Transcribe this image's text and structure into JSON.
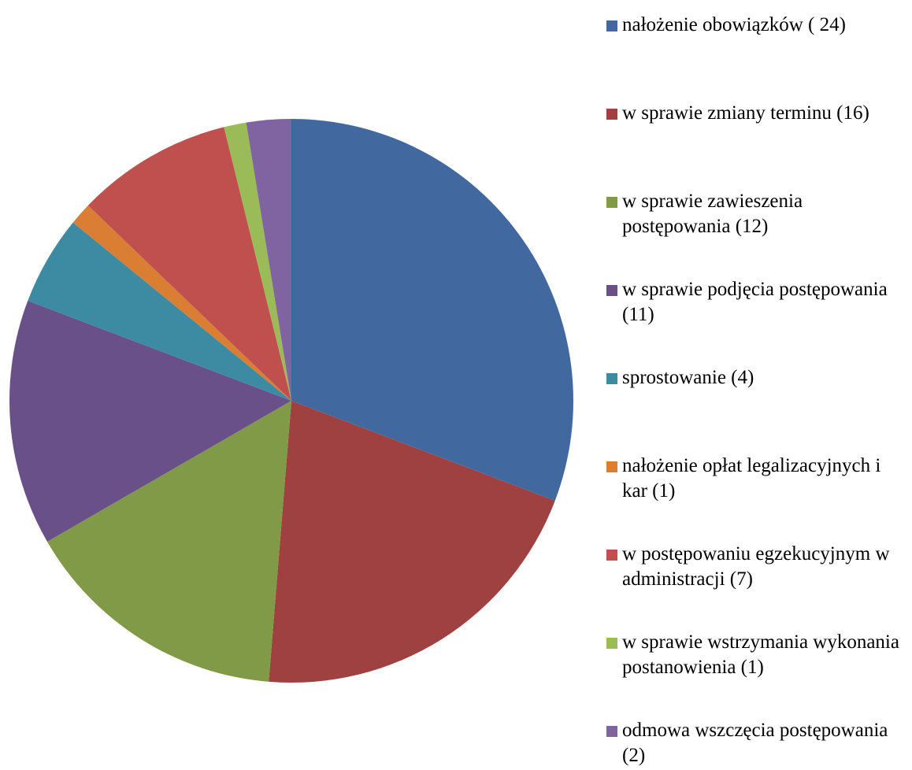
{
  "chart_data": {
    "type": "pie",
    "categories": [
      "nałożenie obowiązków ( 24)",
      "w sprawie zmiany terminu (16)",
      "w sprawie zawieszenia postępowania  (12)",
      "w sprawie podjęcia postępowania  (11)",
      "sprostowanie (4)",
      "nałożenie opłat legalizacyjnych i kar (1)",
      "w postępowaniu egzekucyjnym w administracji (7)",
      "w sprawie wstrzymania wykonania postanowienia (1)",
      "odmowa wszczęcia postępowania (2)"
    ],
    "values": [
      24,
      16,
      12,
      11,
      4,
      1,
      7,
      1,
      2
    ],
    "colors": [
      "#4169A0",
      "#9E4140",
      "#809A48",
      "#6A5088",
      "#3C8BA2",
      "#D97E33",
      "#C0504D",
      "#9BBB59",
      "#8064A2"
    ],
    "start_angle_deg": 0,
    "direction": "clockwise",
    "legend_position": "right"
  }
}
